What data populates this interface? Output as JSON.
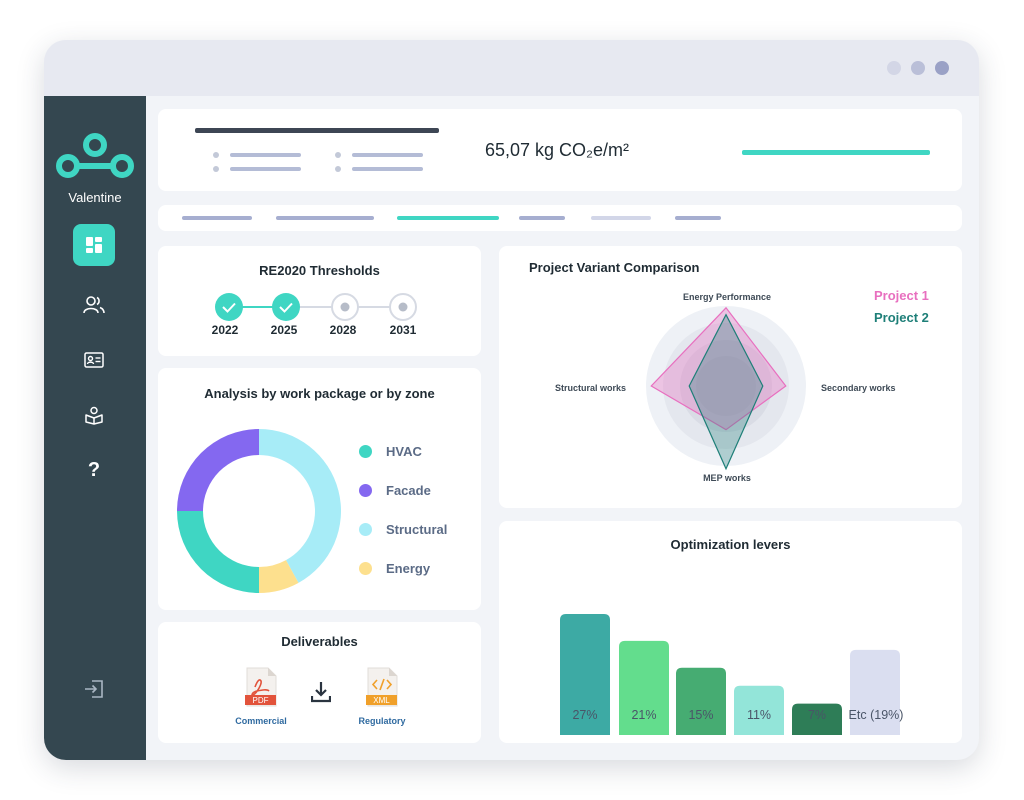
{
  "app": {
    "brand_name": "Valentine"
  },
  "sidebar": {
    "items": [
      {
        "name": "dashboard",
        "icon": "dashboard-icon",
        "active": true
      },
      {
        "name": "users",
        "icon": "users-icon",
        "active": false
      },
      {
        "name": "contacts",
        "icon": "id-card-icon",
        "active": false
      },
      {
        "name": "library",
        "icon": "book-icon",
        "active": false
      },
      {
        "name": "help",
        "icon": "question-icon",
        "label": "?",
        "active": false
      }
    ],
    "logout_icon": "logout-icon"
  },
  "header": {
    "metric": "65,07 kg CO₂e/m²"
  },
  "thresholds": {
    "title": "RE2020 Thresholds",
    "steps": [
      {
        "year": "2022",
        "done": true
      },
      {
        "year": "2025",
        "done": true
      },
      {
        "year": "2028",
        "done": false
      },
      {
        "year": "2031",
        "done": false
      }
    ]
  },
  "analysis": {
    "title": "Analysis by work package or by zone",
    "chart_data": {
      "type": "pie",
      "labels": [
        "HVAC",
        "Facade",
        "Structural",
        "Energy"
      ],
      "values": [
        25,
        25,
        42,
        8
      ],
      "colors": [
        "#3fd6c3",
        "#8468f0",
        "#a7ecf7",
        "#fde08e"
      ],
      "hole": true
    }
  },
  "deliverables": {
    "title": "Deliverables",
    "files": [
      {
        "label": "Commercial",
        "type": "PDF",
        "icon": "pdf-file-icon"
      },
      {
        "label": "Regulatory",
        "type": "XML",
        "icon": "xml-file-icon"
      }
    ],
    "download_icon": "download-icon"
  },
  "comparison": {
    "title": "Project Variant Comparison",
    "chart_data": {
      "type": "radar",
      "axes": [
        "Energy Performance",
        "Secondary works",
        "MEP works",
        "Structural works"
      ],
      "series": [
        {
          "name": "Project 1",
          "color": "#e86fbf",
          "values": [
            0.68,
            0.52,
            0.38,
            0.65
          ]
        },
        {
          "name": "Project 2",
          "color": "#1e7f78",
          "values": [
            0.62,
            0.32,
            0.72,
            0.32
          ]
        }
      ],
      "range": [
        0,
        1
      ]
    }
  },
  "optimization": {
    "title": "Optimization levers",
    "chart_data": {
      "type": "bar",
      "categories": [
        "27%",
        "21%",
        "15%",
        "11%",
        "7%",
        "Etc (19%)"
      ],
      "values": [
        27,
        21,
        15,
        11,
        7,
        19
      ],
      "colors": [
        "#3daaa4",
        "#63dd8d",
        "#46ac72",
        "#93e5d9",
        "#2e7d57",
        "#dadef0"
      ],
      "ylim": [
        0,
        28
      ]
    }
  }
}
